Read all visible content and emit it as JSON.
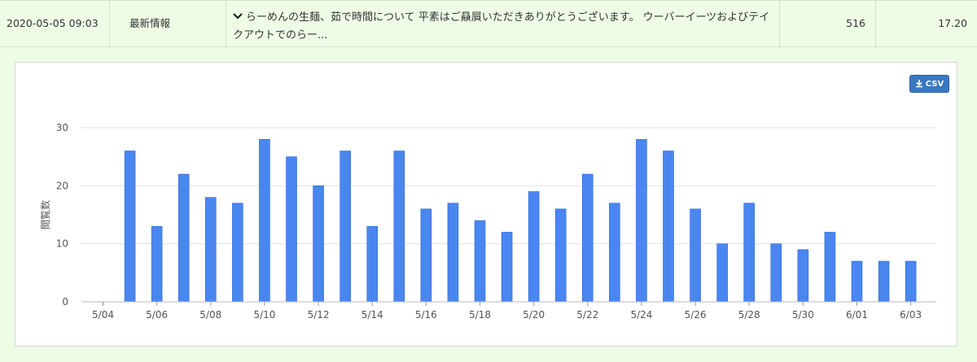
{
  "row": {
    "date": "2020-05-05 09:03",
    "category": "最新情報",
    "title": "らーめんの生麺、茹で時間について 平素はご贔屓いただきありがとうございます。 ウーバーイーツおよびテイクアウトでのらー...",
    "views": "516",
    "seconds": "17.20"
  },
  "csv_button": {
    "label": "CSV",
    "icon": "download-icon"
  },
  "chart_data": {
    "type": "bar",
    "ylabel": "閲覧数",
    "xlabel": "",
    "ylim": [
      0,
      30
    ],
    "yticks": [
      0,
      10,
      20,
      30
    ],
    "grid": true,
    "bar_color": "#4a86f0",
    "categories": [
      "5/04",
      "5/05",
      "5/06",
      "5/07",
      "5/08",
      "5/09",
      "5/10",
      "5/11",
      "5/12",
      "5/13",
      "5/14",
      "5/15",
      "5/16",
      "5/17",
      "5/18",
      "5/19",
      "5/20",
      "5/21",
      "5/22",
      "5/23",
      "5/24",
      "5/25",
      "5/26",
      "5/27",
      "5/28",
      "5/29",
      "5/30",
      "5/31",
      "6/01",
      "6/02",
      "6/03"
    ],
    "tick_labels": [
      "5/04",
      "5/06",
      "5/08",
      "5/10",
      "5/12",
      "5/14",
      "5/16",
      "5/18",
      "5/20",
      "5/22",
      "5/24",
      "5/26",
      "5/28",
      "5/30",
      "6/01",
      "6/03"
    ],
    "values": [
      0,
      26,
      13,
      22,
      18,
      17,
      28,
      25,
      20,
      26,
      13,
      26,
      16,
      17,
      14,
      12,
      19,
      16,
      22,
      17,
      28,
      26,
      16,
      10,
      17,
      10,
      9,
      12,
      7,
      7,
      7
    ]
  }
}
